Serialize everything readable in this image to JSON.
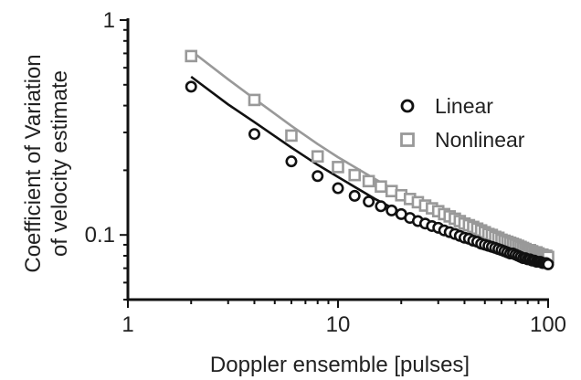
{
  "chart_data": {
    "type": "scatter",
    "title": "",
    "xlabel": "Doppler ensemble [pulses]",
    "ylabel": [
      "Coefficient of Variation",
      "of velocity estimate"
    ],
    "x_scale": "log",
    "y_scale": "log",
    "xlim": [
      1,
      100
    ],
    "ylim": [
      0.05,
      1
    ],
    "x_ticks": [
      {
        "value": 1,
        "label": "1"
      },
      {
        "value": 10,
        "label": "10"
      },
      {
        "value": 100,
        "label": "100"
      }
    ],
    "y_ticks": [
      {
        "value": 0.1,
        "label": "0.1"
      },
      {
        "value": 1,
        "label": "1"
      }
    ],
    "grid": false,
    "legend": {
      "position": "top-right"
    },
    "series": [
      {
        "name": "Linear",
        "marker": "circle",
        "color": "#111111",
        "points": [
          [
            2,
            0.49
          ],
          [
            4,
            0.295
          ],
          [
            6,
            0.22
          ],
          [
            8,
            0.188
          ],
          [
            10,
            0.165
          ],
          [
            12,
            0.152
          ],
          [
            14,
            0.143
          ],
          [
            16,
            0.136
          ],
          [
            18,
            0.13
          ],
          [
            20,
            0.125
          ],
          [
            22,
            0.12
          ],
          [
            24,
            0.116
          ],
          [
            26,
            0.113
          ],
          [
            28,
            0.11
          ],
          [
            30,
            0.108
          ],
          [
            32,
            0.105
          ],
          [
            34,
            0.103
          ],
          [
            36,
            0.101
          ],
          [
            38,
            0.099
          ],
          [
            40,
            0.097
          ],
          [
            42,
            0.096
          ],
          [
            44,
            0.094
          ],
          [
            46,
            0.093
          ],
          [
            48,
            0.091
          ],
          [
            50,
            0.09
          ],
          [
            52,
            0.089
          ],
          [
            54,
            0.088
          ],
          [
            56,
            0.087
          ],
          [
            58,
            0.086
          ],
          [
            60,
            0.085
          ],
          [
            62,
            0.084
          ],
          [
            64,
            0.083
          ],
          [
            66,
            0.082
          ],
          [
            68,
            0.082
          ],
          [
            70,
            0.081
          ],
          [
            72,
            0.08
          ],
          [
            74,
            0.079
          ],
          [
            76,
            0.078
          ],
          [
            78,
            0.078
          ],
          [
            80,
            0.077
          ],
          [
            82,
            0.077
          ],
          [
            84,
            0.076
          ],
          [
            86,
            0.076
          ],
          [
            88,
            0.075
          ],
          [
            90,
            0.075
          ],
          [
            92,
            0.075
          ],
          [
            94,
            0.074
          ],
          [
            96,
            0.074
          ],
          [
            98,
            0.074
          ],
          [
            100,
            0.073
          ]
        ],
        "fit": [
          [
            2,
            0.545
          ],
          [
            3,
            0.405
          ],
          [
            4,
            0.335
          ],
          [
            6,
            0.255
          ],
          [
            8,
            0.212
          ],
          [
            10,
            0.186
          ],
          [
            15,
            0.147
          ],
          [
            20,
            0.127
          ],
          [
            30,
            0.106
          ],
          [
            40,
            0.095
          ],
          [
            60,
            0.084
          ],
          [
            80,
            0.078
          ],
          [
            100,
            0.074
          ]
        ]
      },
      {
        "name": "Nonlinear",
        "marker": "square",
        "color": "#999999",
        "points": [
          [
            2,
            0.68
          ],
          [
            4,
            0.425
          ],
          [
            6,
            0.29
          ],
          [
            8,
            0.232
          ],
          [
            10,
            0.207
          ],
          [
            12,
            0.19
          ],
          [
            14,
            0.178
          ],
          [
            16,
            0.168
          ],
          [
            18,
            0.16
          ],
          [
            20,
            0.153
          ],
          [
            22,
            0.147
          ],
          [
            24,
            0.142
          ],
          [
            26,
            0.137
          ],
          [
            28,
            0.133
          ],
          [
            30,
            0.129
          ],
          [
            32,
            0.125
          ],
          [
            34,
            0.122
          ],
          [
            36,
            0.119
          ],
          [
            38,
            0.116
          ],
          [
            40,
            0.113
          ],
          [
            42,
            0.111
          ],
          [
            44,
            0.109
          ],
          [
            46,
            0.107
          ],
          [
            48,
            0.105
          ],
          [
            50,
            0.103
          ],
          [
            52,
            0.101
          ],
          [
            54,
            0.1
          ],
          [
            56,
            0.098
          ],
          [
            58,
            0.097
          ],
          [
            60,
            0.095
          ],
          [
            62,
            0.094
          ],
          [
            64,
            0.093
          ],
          [
            66,
            0.092
          ],
          [
            68,
            0.091
          ],
          [
            70,
            0.09
          ],
          [
            72,
            0.089
          ],
          [
            74,
            0.088
          ],
          [
            76,
            0.087
          ],
          [
            78,
            0.086
          ],
          [
            80,
            0.085
          ],
          [
            82,
            0.085
          ],
          [
            84,
            0.084
          ],
          [
            86,
            0.083
          ],
          [
            88,
            0.083
          ],
          [
            90,
            0.082
          ],
          [
            92,
            0.081
          ],
          [
            94,
            0.081
          ],
          [
            96,
            0.08
          ],
          [
            98,
            0.08
          ],
          [
            100,
            0.079
          ]
        ],
        "fit": [
          [
            2,
            0.72
          ],
          [
            3,
            0.53
          ],
          [
            4,
            0.43
          ],
          [
            6,
            0.322
          ],
          [
            8,
            0.265
          ],
          [
            10,
            0.23
          ],
          [
            15,
            0.182
          ],
          [
            20,
            0.155
          ],
          [
            30,
            0.128
          ],
          [
            40,
            0.112
          ],
          [
            60,
            0.097
          ],
          [
            80,
            0.088
          ],
          [
            100,
            0.081
          ]
        ]
      }
    ]
  }
}
